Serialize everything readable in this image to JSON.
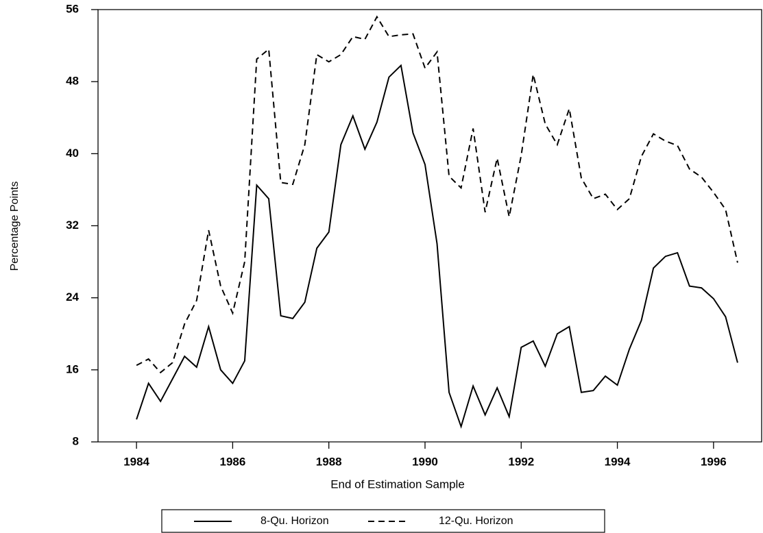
{
  "chart_data": {
    "type": "line",
    "x_label": "End of Estimation Sample",
    "y_label": "Percentage Points",
    "x": [
      1984,
      1984.25,
      1984.5,
      1984.75,
      1985,
      1985.25,
      1985.5,
      1985.75,
      1986,
      1986.25,
      1986.5,
      1986.75,
      1987,
      1987.25,
      1987.5,
      1987.75,
      1988,
      1988.25,
      1988.5,
      1988.75,
      1989,
      1989.25,
      1989.5,
      1989.75,
      1990,
      1990.25,
      1990.5,
      1990.75,
      1991,
      1991.25,
      1991.5,
      1991.75,
      1992,
      1992.25,
      1992.5,
      1992.75,
      1993,
      1993.25,
      1993.5,
      1993.75,
      1994,
      1994.25,
      1994.5,
      1994.75,
      1995,
      1995.25,
      1995.5,
      1995.75,
      1996,
      1996.25,
      1996.5
    ],
    "series": [
      {
        "name": "8-Qu. Horizon",
        "color": "#000000",
        "dash": "solid",
        "values": [
          10.5,
          14.5,
          12.5,
          15,
          17.5,
          16.3,
          20.8,
          16,
          14.5,
          17,
          36.5,
          35,
          22,
          21.7,
          23.5,
          29.5,
          31.3,
          41,
          44.2,
          40.5,
          43.5,
          48.5,
          49.8,
          42.3,
          38.8,
          30,
          13.5,
          9.7,
          14.2,
          11,
          14,
          10.8,
          18.5,
          19.2,
          16.4,
          20,
          20.8,
          13.5,
          13.7,
          15.3,
          14.3,
          18.3,
          21.5,
          27.3,
          28.6,
          29,
          25.3,
          25.1,
          23.9,
          21.9,
          16.8
        ]
      },
      {
        "name": "12-Qu. Horizon",
        "color": "#000000",
        "dash": "dashed",
        "values": [
          16.5,
          17.2,
          15.7,
          16.8,
          21.1,
          23.7,
          31.5,
          25.3,
          22.3,
          28,
          50.5,
          51.6,
          36.8,
          36.6,
          41,
          51,
          50.2,
          51,
          53,
          52.7,
          55.2,
          53,
          53.2,
          53.3,
          49.5,
          51.3,
          37.5,
          36.2,
          42.8,
          33.5,
          39.5,
          33,
          39.8,
          48.8,
          43.3,
          41,
          45,
          37.3,
          35,
          35.5,
          33.8,
          35,
          39.7,
          42.2,
          41.4,
          40.9,
          38.3,
          37.4,
          35.7,
          33.8,
          27.9
        ]
      }
    ],
    "xlim": [
      1983.2,
      1997
    ],
    "xticks": [
      1984,
      1986,
      1988,
      1990,
      1992,
      1994,
      1996
    ],
    "ylim": [
      8,
      56
    ],
    "yticks": [
      8,
      16,
      24,
      32,
      40,
      48,
      56
    ],
    "legend": "bottom"
  }
}
